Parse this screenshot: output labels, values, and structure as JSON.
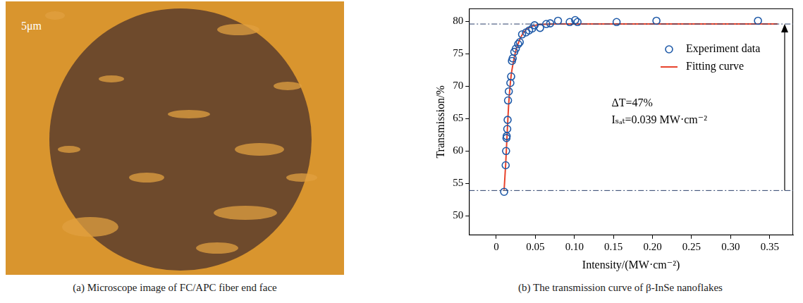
{
  "image_panel": {
    "caption": "(a) Microscope image of FC/APC fiber end face",
    "scale_label": "5μm"
  },
  "chart_data": {
    "type": "scatter",
    "caption": "(b) The transmission curve of β-InSe nanoflakes",
    "x_label": "Intensity/(MW·cm⁻²)",
    "y_label": "Transmission/%",
    "xlim": [
      -0.035,
      0.38
    ],
    "xticks": [
      0,
      0.05,
      {
        "value": 0.1,
        "label": "0.10"
      },
      0.15,
      {
        "value": 0.2,
        "label": "0.20"
      },
      0.25,
      {
        "value": 0.3,
        "label": "0.30"
      },
      0.35
    ],
    "ylim": [
      47,
      82
    ],
    "yticks": [
      50,
      55,
      60,
      65,
      70,
      75,
      80
    ],
    "grid": false,
    "legend": "upper right",
    "annotations": [
      "ΔT=47%",
      "Iₛₐₜ=0.039 MW·cm⁻²"
    ],
    "reference_lines": [
      53.9,
      79.6
    ],
    "series": [
      {
        "name": "Experiment data",
        "type": "scatter",
        "marker": "open_circle",
        "color": "#1f5aa8",
        "x": [
          0.01,
          0.012,
          0.0125,
          0.013,
          0.0133,
          0.014,
          0.0145,
          0.015,
          0.016,
          0.018,
          0.019,
          0.02,
          0.021,
          0.023,
          0.025,
          0.028,
          0.03,
          0.033,
          0.038,
          0.042,
          0.046,
          0.049,
          0.056,
          0.064,
          0.069,
          0.079,
          0.094,
          0.101,
          0.104,
          0.154,
          0.205,
          0.335
        ],
        "values": [
          53.7,
          57.8,
          60.0,
          62.0,
          62.3,
          63.4,
          64.8,
          67.8,
          69.2,
          70.5,
          71.5,
          73.9,
          74.3,
          75.3,
          75.8,
          76.5,
          76.8,
          78.0,
          78.3,
          78.6,
          78.9,
          79.4,
          79.0,
          79.6,
          79.7,
          80.1,
          79.9,
          80.2,
          79.9,
          79.9,
          80.1,
          80.1
        ]
      },
      {
        "name": "Fitting curve",
        "type": "line",
        "line_style": "solid",
        "color": "#e8432c",
        "x": [
          0.01,
          0.012,
          0.014,
          0.016,
          0.018,
          0.02,
          0.025,
          0.03,
          0.035,
          0.04,
          0.05,
          0.06,
          0.08,
          0.1,
          0.2,
          0.3,
          0.36
        ],
        "values": [
          54.0,
          58.0,
          63.0,
          67.5,
          70.5,
          72.5,
          75.5,
          77.2,
          78.3,
          78.9,
          79.4,
          79.55,
          79.6,
          79.6,
          79.6,
          79.6,
          79.6
        ]
      }
    ]
  }
}
